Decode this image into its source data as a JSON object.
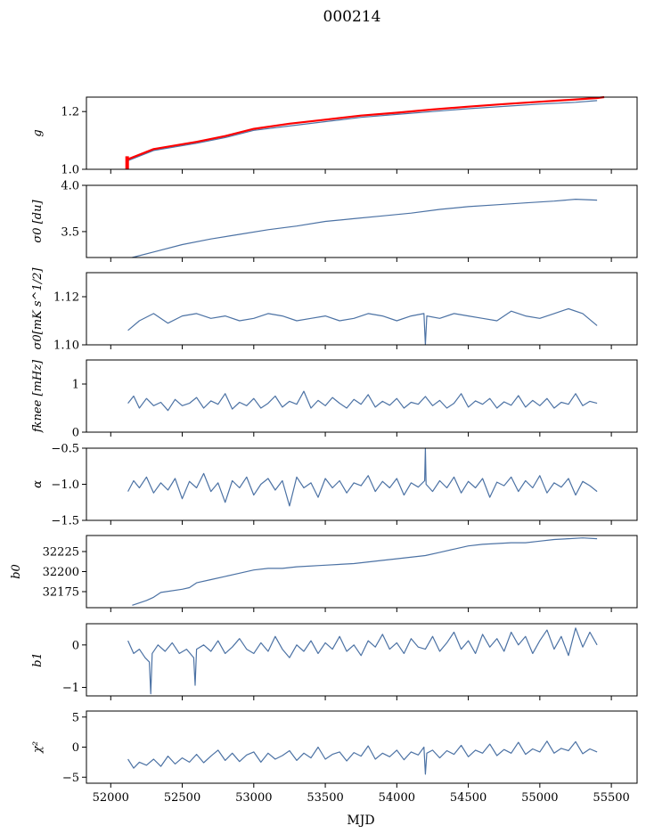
{
  "figure": {
    "title": "000214",
    "xlabel": "MJD",
    "x_ticks": [
      "52000",
      "52500",
      "53000",
      "53500",
      "54000",
      "54500",
      "55000",
      "55500"
    ]
  },
  "colors": {
    "series": "#4c72a4",
    "overlay": "#ff0000",
    "axes": "#000000"
  },
  "chart_data": [
    {
      "type": "line",
      "panel": 0,
      "ylabel": "g",
      "xlim": [
        51830,
        55680
      ],
      "ylim": [
        1.0,
        1.25
      ],
      "yticks": [
        1.0,
        1.2
      ],
      "ytick_labels": [
        "1.0",
        "1.2"
      ],
      "series": [
        {
          "x": [
            52120,
            52300,
            52600,
            52800,
            53000,
            53250,
            53500,
            53750,
            54000,
            54250,
            54500,
            54750,
            55000,
            55250,
            55400
          ],
          "y": [
            1.03,
            1.065,
            1.09,
            1.11,
            1.135,
            1.15,
            1.165,
            1.18,
            1.19,
            1.2,
            1.21,
            1.218,
            1.226,
            1.232,
            1.238
          ]
        },
        {
          "x": [
            52120,
            52300,
            52600,
            52800,
            53000,
            53250,
            53500,
            53750,
            54000,
            54250,
            54500,
            54750,
            55000,
            55250,
            55400,
            55450
          ],
          "y": [
            1.035,
            1.07,
            1.095,
            1.115,
            1.14,
            1.158,
            1.172,
            1.186,
            1.196,
            1.207,
            1.217,
            1.226,
            1.234,
            1.242,
            1.247,
            1.25
          ]
        },
        {
          "x": [
            52115,
            52115
          ],
          "y": [
            1.0,
            1.045
          ]
        }
      ]
    },
    {
      "type": "line",
      "panel": 1,
      "ylabel": "σ0 [du]",
      "xlim": [
        51830,
        55680
      ],
      "ylim": [
        3.22,
        4.0
      ],
      "yticks": [
        3.5,
        4.0
      ],
      "ytick_labels": [
        "3.5",
        "4.0"
      ],
      "series": [
        {
          "x": [
            52150,
            52300,
            52500,
            52700,
            52900,
            53100,
            53300,
            53500,
            53700,
            53900,
            54100,
            54300,
            54500,
            54700,
            54900,
            55100,
            55250,
            55400
          ],
          "y": [
            3.22,
            3.28,
            3.36,
            3.42,
            3.47,
            3.52,
            3.56,
            3.61,
            3.64,
            3.67,
            3.7,
            3.74,
            3.77,
            3.79,
            3.81,
            3.83,
            3.85,
            3.84
          ]
        }
      ]
    },
    {
      "type": "line",
      "panel": 2,
      "ylabel": "σ0[mK s^1/2]",
      "xlim": [
        51830,
        55680
      ],
      "ylim": [
        1.1,
        1.13
      ],
      "yticks": [
        1.1,
        1.12
      ],
      "ytick_labels": [
        "1.10",
        "1.12"
      ],
      "series": [
        {
          "x": [
            52120,
            52200,
            52300,
            52400,
            52500,
            52600,
            52700,
            52800,
            52900,
            53000,
            53100,
            53200,
            53300,
            53400,
            53500,
            53600,
            53700,
            53800,
            53900,
            54000,
            54100,
            54190,
            54200,
            54210,
            54300,
            54400,
            54500,
            54600,
            54700,
            54800,
            54900,
            55000,
            55100,
            55200,
            55300,
            55400
          ],
          "y": [
            1.106,
            1.11,
            1.113,
            1.109,
            1.112,
            1.113,
            1.111,
            1.112,
            1.11,
            1.111,
            1.113,
            1.112,
            1.11,
            1.111,
            1.112,
            1.11,
            1.111,
            1.113,
            1.112,
            1.11,
            1.112,
            1.113,
            1.1,
            1.112,
            1.111,
            1.113,
            1.112,
            1.111,
            1.11,
            1.114,
            1.112,
            1.111,
            1.113,
            1.115,
            1.113,
            1.108
          ]
        }
      ]
    },
    {
      "type": "line",
      "panel": 3,
      "ylabel": "fknee [mHz]",
      "xlim": [
        51830,
        55680
      ],
      "ylim": [
        0,
        1.5
      ],
      "yticks": [
        0,
        1
      ],
      "ytick_labels": [
        "0",
        "1"
      ],
      "series": [
        {
          "x": [
            52120,
            52160,
            52200,
            52250,
            52300,
            52350,
            52400,
            52450,
            52500,
            52550,
            52600,
            52650,
            52700,
            52750,
            52800,
            52850,
            52900,
            52950,
            53000,
            53050,
            53100,
            53150,
            53200,
            53250,
            53300,
            53350,
            53400,
            53450,
            53500,
            53550,
            53600,
            53650,
            53700,
            53750,
            53800,
            53850,
            53900,
            53950,
            54000,
            54050,
            54100,
            54150,
            54200,
            54250,
            54300,
            54350,
            54400,
            54450,
            54500,
            54550,
            54600,
            54650,
            54700,
            54750,
            54800,
            54850,
            54900,
            54950,
            55000,
            55050,
            55100,
            55150,
            55200,
            55250,
            55300,
            55350,
            55400
          ],
          "y": [
            0.6,
            0.75,
            0.5,
            0.7,
            0.55,
            0.62,
            0.45,
            0.68,
            0.55,
            0.6,
            0.72,
            0.5,
            0.65,
            0.58,
            0.8,
            0.48,
            0.62,
            0.55,
            0.7,
            0.5,
            0.6,
            0.75,
            0.52,
            0.64,
            0.58,
            0.85,
            0.5,
            0.66,
            0.55,
            0.72,
            0.6,
            0.5,
            0.68,
            0.58,
            0.78,
            0.52,
            0.64,
            0.56,
            0.7,
            0.5,
            0.62,
            0.58,
            0.74,
            0.55,
            0.66,
            0.5,
            0.6,
            0.8,
            0.52,
            0.65,
            0.58,
            0.7,
            0.5,
            0.63,
            0.56,
            0.76,
            0.52,
            0.66,
            0.55,
            0.7,
            0.5,
            0.62,
            0.58,
            0.8,
            0.55,
            0.64,
            0.6
          ]
        }
      ]
    },
    {
      "type": "line",
      "panel": 4,
      "ylabel": "α",
      "xlim": [
        51830,
        55680
      ],
      "ylim": [
        -1.5,
        -0.5
      ],
      "yticks": [
        -1.5,
        -1.0,
        -0.5
      ],
      "ytick_labels": [
        "−1.5",
        "−1.0",
        "−0.5"
      ],
      "series": [
        {
          "x": [
            52120,
            52160,
            52200,
            52250,
            52300,
            52350,
            52400,
            52450,
            52500,
            52550,
            52600,
            52650,
            52700,
            52750,
            52800,
            52850,
            52900,
            52950,
            53000,
            53050,
            53100,
            53150,
            53200,
            53250,
            53300,
            53350,
            53400,
            53450,
            53500,
            53550,
            53600,
            53650,
            53700,
            53750,
            53800,
            53850,
            53900,
            53950,
            54000,
            54050,
            54100,
            54150,
            54195,
            54200,
            54205,
            54250,
            54300,
            54350,
            54400,
            54450,
            54500,
            54550,
            54600,
            54650,
            54700,
            54750,
            54800,
            54850,
            54900,
            54950,
            55000,
            55050,
            55100,
            55150,
            55200,
            55250,
            55300,
            55350,
            55400
          ],
          "y": [
            -1.1,
            -0.95,
            -1.05,
            -0.9,
            -1.12,
            -0.98,
            -1.08,
            -0.92,
            -1.2,
            -0.96,
            -1.05,
            -0.85,
            -1.1,
            -0.98,
            -1.25,
            -0.95,
            -1.05,
            -0.9,
            -1.15,
            -1.0,
            -0.92,
            -1.08,
            -0.95,
            -1.3,
            -0.9,
            -1.05,
            -0.98,
            -1.18,
            -0.92,
            -1.05,
            -0.95,
            -1.12,
            -0.98,
            -1.02,
            -0.88,
            -1.1,
            -0.96,
            -1.05,
            -0.92,
            -1.15,
            -0.98,
            -1.04,
            -0.95,
            -0.5,
            -1.0,
            -1.1,
            -0.95,
            -1.05,
            -0.9,
            -1.12,
            -0.96,
            -1.05,
            -0.92,
            -1.18,
            -0.97,
            -1.02,
            -0.9,
            -1.1,
            -0.95,
            -1.05,
            -0.88,
            -1.12,
            -0.98,
            -1.04,
            -0.92,
            -1.15,
            -0.96,
            -1.02,
            -1.1
          ]
        }
      ]
    },
    {
      "type": "line",
      "panel": 5,
      "ylabel": "b0",
      "xlim": [
        51830,
        55680
      ],
      "ylim": [
        32155,
        32245
      ],
      "yticks": [
        32175,
        32200,
        32225
      ],
      "ytick_labels": [
        "32175",
        "32200",
        "32225"
      ],
      "series": [
        {
          "x": [
            52150,
            52250,
            52300,
            52350,
            52500,
            52550,
            52600,
            52700,
            52800,
            52900,
            53000,
            53100,
            53200,
            53300,
            53500,
            53700,
            53900,
            54000,
            54200,
            54300,
            54400,
            54500,
            54600,
            54700,
            54800,
            54900,
            55000,
            55100,
            55200,
            55300,
            55400
          ],
          "y": [
            32158,
            32164,
            32168,
            32174,
            32178,
            32180,
            32186,
            32190,
            32194,
            32198,
            32202,
            32204,
            32204,
            32206,
            32208,
            32210,
            32214,
            32216,
            32220,
            32224,
            32228,
            32232,
            32234,
            32235,
            32236,
            32236,
            32238,
            32240,
            32241,
            32242,
            32241
          ]
        }
      ]
    },
    {
      "type": "line",
      "panel": 6,
      "ylabel": "b1",
      "xlim": [
        51830,
        55680
      ],
      "ylim": [
        -1.2,
        0.5
      ],
      "yticks": [
        -1,
        0
      ],
      "ytick_labels": [
        "−1",
        "0"
      ],
      "series": [
        {
          "x": [
            52120,
            52160,
            52200,
            52240,
            52270,
            52280,
            52290,
            52330,
            52380,
            52430,
            52480,
            52530,
            52580,
            52590,
            52600,
            52650,
            52700,
            52750,
            52800,
            52850,
            52900,
            52950,
            53000,
            53050,
            53100,
            53150,
            53200,
            53250,
            53300,
            53350,
            53400,
            53450,
            53500,
            53550,
            53600,
            53650,
            53700,
            53750,
            53800,
            53850,
            53900,
            53950,
            54000,
            54050,
            54100,
            54150,
            54200,
            54250,
            54300,
            54350,
            54400,
            54450,
            54500,
            54550,
            54600,
            54650,
            54700,
            54750,
            54800,
            54850,
            54900,
            54950,
            55000,
            55050,
            55100,
            55150,
            55200,
            55250,
            55300,
            55350,
            55400
          ],
          "y": [
            0.1,
            -0.2,
            -0.1,
            -0.3,
            -0.4,
            -1.15,
            -0.2,
            0.0,
            -0.15,
            0.05,
            -0.2,
            -0.1,
            -0.3,
            -0.95,
            -0.1,
            0.0,
            -0.15,
            0.1,
            -0.2,
            -0.05,
            0.15,
            -0.1,
            -0.2,
            0.05,
            -0.15,
            0.2,
            -0.1,
            -0.3,
            0.0,
            -0.15,
            0.1,
            -0.2,
            0.05,
            -0.1,
            0.2,
            -0.15,
            0.0,
            -0.25,
            0.1,
            -0.05,
            0.25,
            -0.1,
            0.05,
            -0.2,
            0.15,
            -0.05,
            -0.1,
            0.2,
            -0.15,
            0.05,
            0.3,
            -0.1,
            0.1,
            -0.2,
            0.25,
            -0.05,
            0.15,
            -0.15,
            0.3,
            0.0,
            0.2,
            -0.2,
            0.1,
            0.35,
            -0.1,
            0.2,
            -0.25,
            0.4,
            -0.05,
            0.3,
            0.0
          ]
        }
      ]
    },
    {
      "type": "line",
      "panel": 7,
      "ylabel": "χ²",
      "xlim": [
        51830,
        55680
      ],
      "ylim": [
        -6,
        6
      ],
      "yticks": [
        -5,
        0,
        5
      ],
      "ytick_labels": [
        "−5",
        "0",
        "5"
      ],
      "series": [
        {
          "x": [
            52120,
            52160,
            52200,
            52250,
            52300,
            52350,
            52400,
            52450,
            52500,
            52550,
            52600,
            52650,
            52700,
            52750,
            52800,
            52850,
            52900,
            52950,
            53000,
            53050,
            53100,
            53150,
            53200,
            53250,
            53300,
            53350,
            53400,
            53450,
            53500,
            53550,
            53600,
            53650,
            53700,
            53750,
            53800,
            53850,
            53900,
            53950,
            54000,
            54050,
            54100,
            54150,
            54190,
            54200,
            54210,
            54250,
            54300,
            54350,
            54400,
            54450,
            54500,
            54550,
            54600,
            54650,
            54700,
            54750,
            54800,
            54850,
            54900,
            54950,
            55000,
            55050,
            55100,
            55150,
            55200,
            55250,
            55300,
            55350,
            55400
          ],
          "y": [
            -2.0,
            -3.5,
            -2.5,
            -3.0,
            -2.0,
            -3.2,
            -1.5,
            -2.8,
            -1.8,
            -2.5,
            -1.2,
            -2.6,
            -1.5,
            -0.5,
            -2.2,
            -1.0,
            -2.4,
            -1.3,
            -0.8,
            -2.5,
            -1.0,
            -2.0,
            -1.4,
            -0.6,
            -2.2,
            -1.0,
            -1.8,
            0.0,
            -2.0,
            -1.2,
            -0.8,
            -2.3,
            -0.9,
            -1.5,
            0.2,
            -2.0,
            -1.0,
            -1.6,
            -0.5,
            -2.1,
            -0.8,
            -1.3,
            0.0,
            -4.5,
            -1.0,
            -0.5,
            -1.8,
            -0.6,
            -1.2,
            0.3,
            -1.6,
            -0.5,
            -1.0,
            0.5,
            -1.4,
            -0.4,
            -1.0,
            0.8,
            -1.2,
            -0.3,
            -0.8,
            1.0,
            -1.0,
            -0.2,
            -0.6,
            0.9,
            -1.1,
            -0.3,
            -0.8
          ]
        }
      ]
    }
  ]
}
